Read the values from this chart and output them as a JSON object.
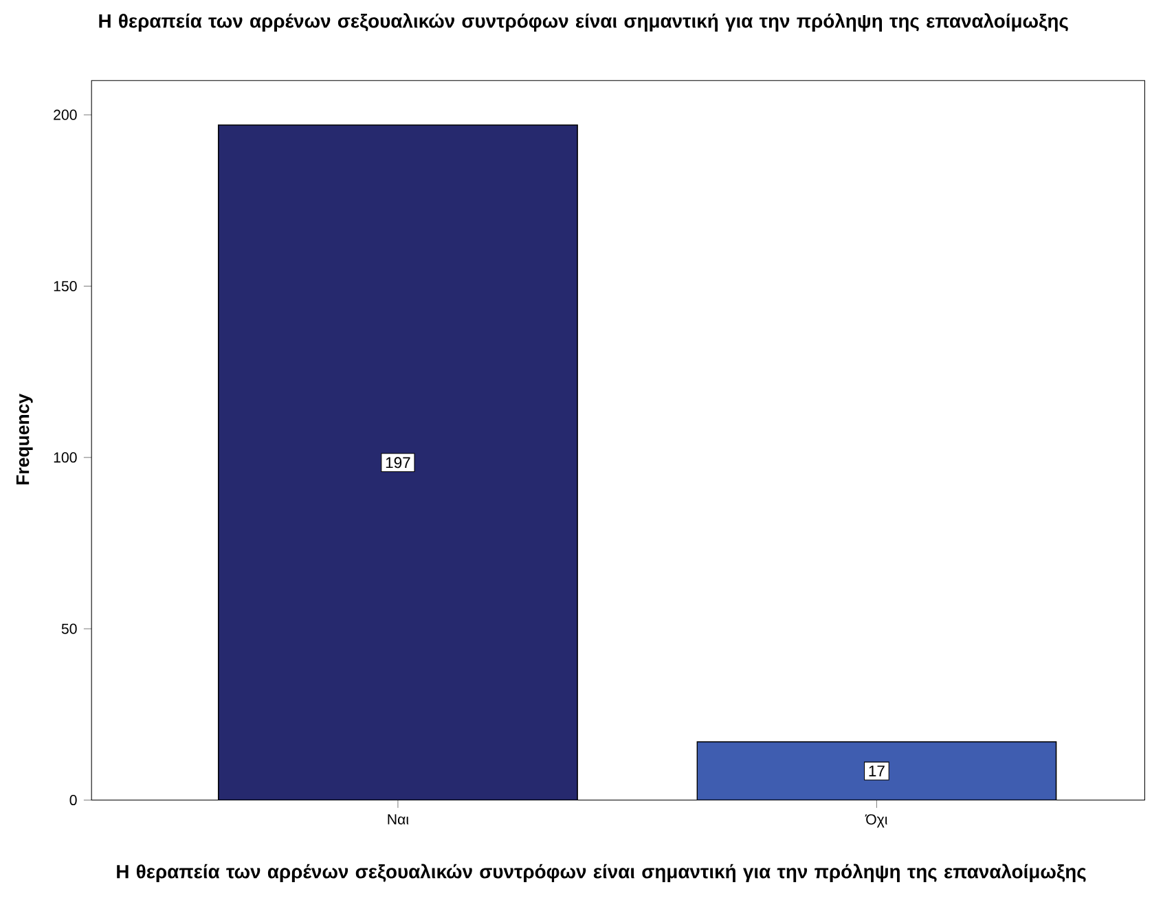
{
  "chart_data": {
    "type": "bar",
    "title": "Η θεραπεία των αρρένων σεξουαλικών συντρόφων είναι σημαντική για την πρόληψη της επαναλοίμωξης",
    "xlabel": "Η θεραπεία των αρρένων σεξουαλικών συντρόφων είναι σημαντική για την πρόληψη της επαναλοίμωξης",
    "ylabel": "Frequency",
    "categories": [
      "Ναι",
      "Όχι"
    ],
    "values": [
      197,
      17
    ],
    "colors": [
      "#26296e",
      "#3f5db0"
    ],
    "ylim": [
      0,
      210
    ],
    "yticks": [
      0,
      50,
      100,
      150,
      200
    ],
    "data_labels": true,
    "grid": false
  }
}
